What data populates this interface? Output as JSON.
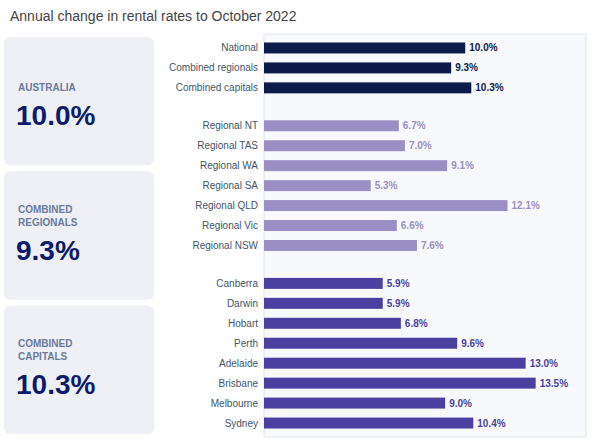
{
  "chart_data": {
    "type": "bar",
    "orientation": "horizontal",
    "title": "Annual change in rental rates to October 2022",
    "annotations": [
      {
        "label": "AUSTRALIA",
        "text": "10.0%"
      },
      {
        "label": "COMBINED\nREGIONALS",
        "text": "9.3%"
      },
      {
        "label": "COMBINED\nCAPITALS",
        "text": "10.3%"
      }
    ],
    "categories": [
      "National",
      "Combined regionals",
      "Combined capitals",
      "Regional NT",
      "Regional TAS",
      "Regional WA",
      "Regional SA",
      "Regional QLD",
      "Regional Vic",
      "Regional NSW",
      "Canberra",
      "Darwin",
      "Hobart",
      "Perth",
      "Adelaide",
      "Brisbane",
      "Melbourne",
      "Sydney"
    ],
    "values": [
      10.0,
      9.3,
      10.3,
      6.7,
      7.0,
      9.1,
      5.3,
      12.1,
      6.6,
      7.6,
      5.9,
      5.9,
      6.8,
      9.6,
      13.0,
      13.5,
      9.0,
      10.4
    ],
    "value_labels": [
      "10.0%",
      "9.3%",
      "10.3%",
      "6.7%",
      "7.0%",
      "9.1%",
      "5.3%",
      "12.1%",
      "6.6%",
      "7.6%",
      "5.9%",
      "5.9%",
      "6.8%",
      "9.6%",
      "13.0%",
      "13.5%",
      "9.0%",
      "10.4%"
    ],
    "colors": [
      "#0d1b4b",
      "#0d1b4b",
      "#0d1b4b",
      "#9b8ec4",
      "#9b8ec4",
      "#9b8ec4",
      "#9b8ec4",
      "#9b8ec4",
      "#9b8ec4",
      "#9b8ec4",
      "#4b3fa0",
      "#4b3fa0",
      "#4b3fa0",
      "#4b3fa0",
      "#4b3fa0",
      "#4b3fa0",
      "#4b3fa0",
      "#4b3fa0"
    ],
    "xlim": [
      0,
      16
    ],
    "data_labels": true,
    "tick_labels": "y",
    "grid": false
  }
}
